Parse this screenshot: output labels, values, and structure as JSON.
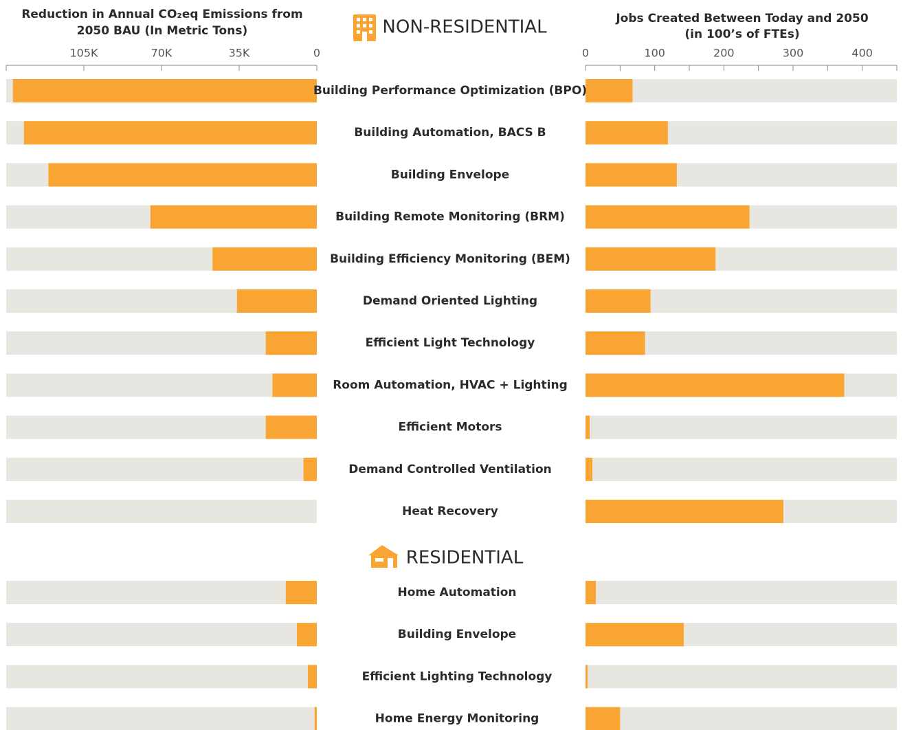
{
  "chart_data": {
    "type": "butterfly",
    "left_title": [
      "Reduction in Annual CO₂eq Emissions from",
      "2050 BAU (In Metric Tons)"
    ],
    "right_title": [
      "Jobs Created Between Today and 2050",
      "(in 100’s of FTEs)"
    ],
    "left_xlim": [
      0,
      140000
    ],
    "left_xticks": [
      {
        "value": 105000,
        "label": "105K"
      },
      {
        "value": 70000,
        "label": "70K"
      },
      {
        "value": 35000,
        "label": "35K"
      },
      0
    ],
    "right_xlim": [
      0,
      450
    ],
    "right_xticks": [
      0,
      100,
      200,
      300,
      400
    ],
    "right_minor_xticks": [
      50,
      150,
      250,
      350
    ],
    "color": "#f9a533",
    "groups": [
      {
        "name": "NON-RESIDENTIAL",
        "categories": [
          "Building Performance Optimization (BPO)",
          "Building Automation, BACS B",
          "Building Envelope",
          "Building Remote Monitoring (BRM)",
          "Building Efficiency Monitoring (BEM)",
          "Demand Oriented Lighting",
          "Efficient Light Technology",
          "Room Automation, HVAC + Lighting",
          "Efficient Motors",
          "Demand Controlled Ventilation",
          "Heat Recovery"
        ],
        "left_values": [
          137000,
          132000,
          121000,
          75000,
          47000,
          36000,
          23000,
          20000,
          23000,
          6000,
          0
        ],
        "right_values": [
          68,
          119,
          132,
          237,
          188,
          94,
          86,
          374,
          6,
          10,
          286
        ]
      },
      {
        "name": "RESIDENTIAL",
        "categories": [
          "Home Automation",
          "Building Envelope",
          "Efficient Lighting Technology",
          "Home Energy Monitoring"
        ],
        "left_values": [
          14000,
          9000,
          4000,
          1000
        ],
        "right_values": [
          15,
          142,
          3,
          50
        ]
      }
    ]
  }
}
